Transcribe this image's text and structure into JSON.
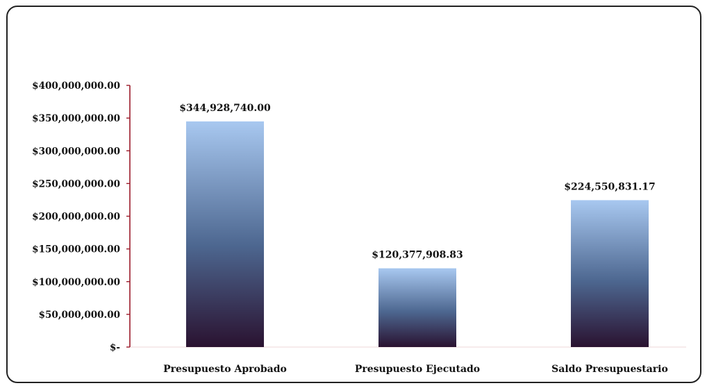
{
  "chart_data": {
    "type": "bar",
    "title": "",
    "xlabel": "",
    "ylabel": "",
    "categories": [
      "Presupuesto Aprobado",
      "Presupuesto Ejecutado",
      "Saldo Presupuestario"
    ],
    "values": [
      344928740.0,
      120377908.83,
      224550831.17
    ],
    "data_labels": [
      "$344,928,740.00",
      "$120,377,908.83",
      "$224,550,831.17"
    ],
    "ylim": [
      0,
      400000000
    ],
    "yticks": [
      0,
      50000000,
      100000000,
      150000000,
      200000000,
      250000000,
      300000000,
      350000000,
      400000000
    ],
    "ytick_labels": [
      "$-",
      "$50,000,000.00",
      "$100,000,000.00",
      "$150,000,000.00",
      "$200,000,000.00",
      "$250,000,000.00",
      "$300,000,000.00",
      "$350,000,000.00",
      "$400,000,000.00"
    ],
    "grid": false,
    "legend": "none",
    "colors": {
      "bar_top": "#a8c8f0",
      "bar_mid": "#4d6790",
      "bar_bottom": "#2a1230",
      "axis": "#9b1b2a",
      "text": "#111111",
      "frame": "#222222"
    }
  }
}
